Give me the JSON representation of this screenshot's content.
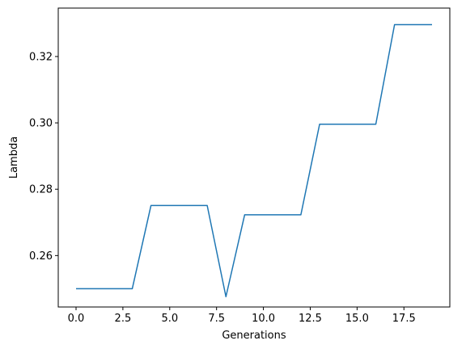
{
  "chart_data": {
    "type": "line",
    "title": "",
    "xlabel": "Generations",
    "ylabel": "Lambda",
    "xlim": [
      -0.95,
      19.95
    ],
    "ylim": [
      0.2445,
      0.3346
    ],
    "grid": false,
    "legend": "none",
    "xticks": [
      0.0,
      2.5,
      5.0,
      7.5,
      10.0,
      12.5,
      15.0,
      17.5
    ],
    "xtick_labels": [
      "0.0",
      "2.5",
      "5.0",
      "7.5",
      "10.0",
      "12.5",
      "15.0",
      "17.5"
    ],
    "yticks": [
      0.26,
      0.28,
      0.3,
      0.32
    ],
    "ytick_labels": [
      "0.26",
      "0.28",
      "0.30",
      "0.32"
    ],
    "series": [
      {
        "color": "#1f77b4",
        "x": [
          0,
          1,
          2,
          3,
          4,
          5,
          6,
          7,
          8,
          9,
          10,
          11,
          12,
          13,
          14,
          15,
          16,
          17,
          18,
          19
        ],
        "y": [
          0.25,
          0.25,
          0.25,
          0.25,
          0.2751,
          0.2751,
          0.2751,
          0.2751,
          0.2476,
          0.2723,
          0.2723,
          0.2723,
          0.2723,
          0.2996,
          0.2996,
          0.2996,
          0.2996,
          0.3296,
          0.3296,
          0.3296
        ]
      }
    ]
  }
}
